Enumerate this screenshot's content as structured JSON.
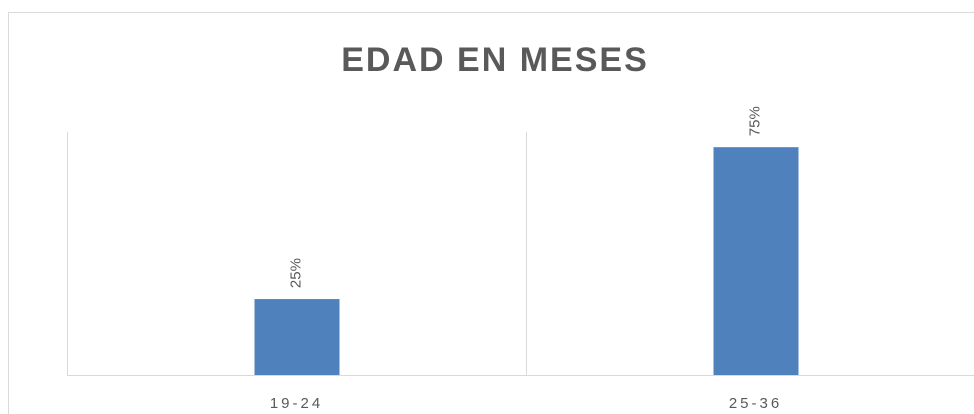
{
  "chart_data": {
    "type": "bar",
    "title": "EDAD EN MESES",
    "categories": [
      "19-24",
      "25-36"
    ],
    "values": [
      25,
      75
    ],
    "value_labels": [
      "25%",
      "75%"
    ],
    "color": "#4f81bd",
    "ylim": [
      0,
      80
    ],
    "grid": true
  }
}
